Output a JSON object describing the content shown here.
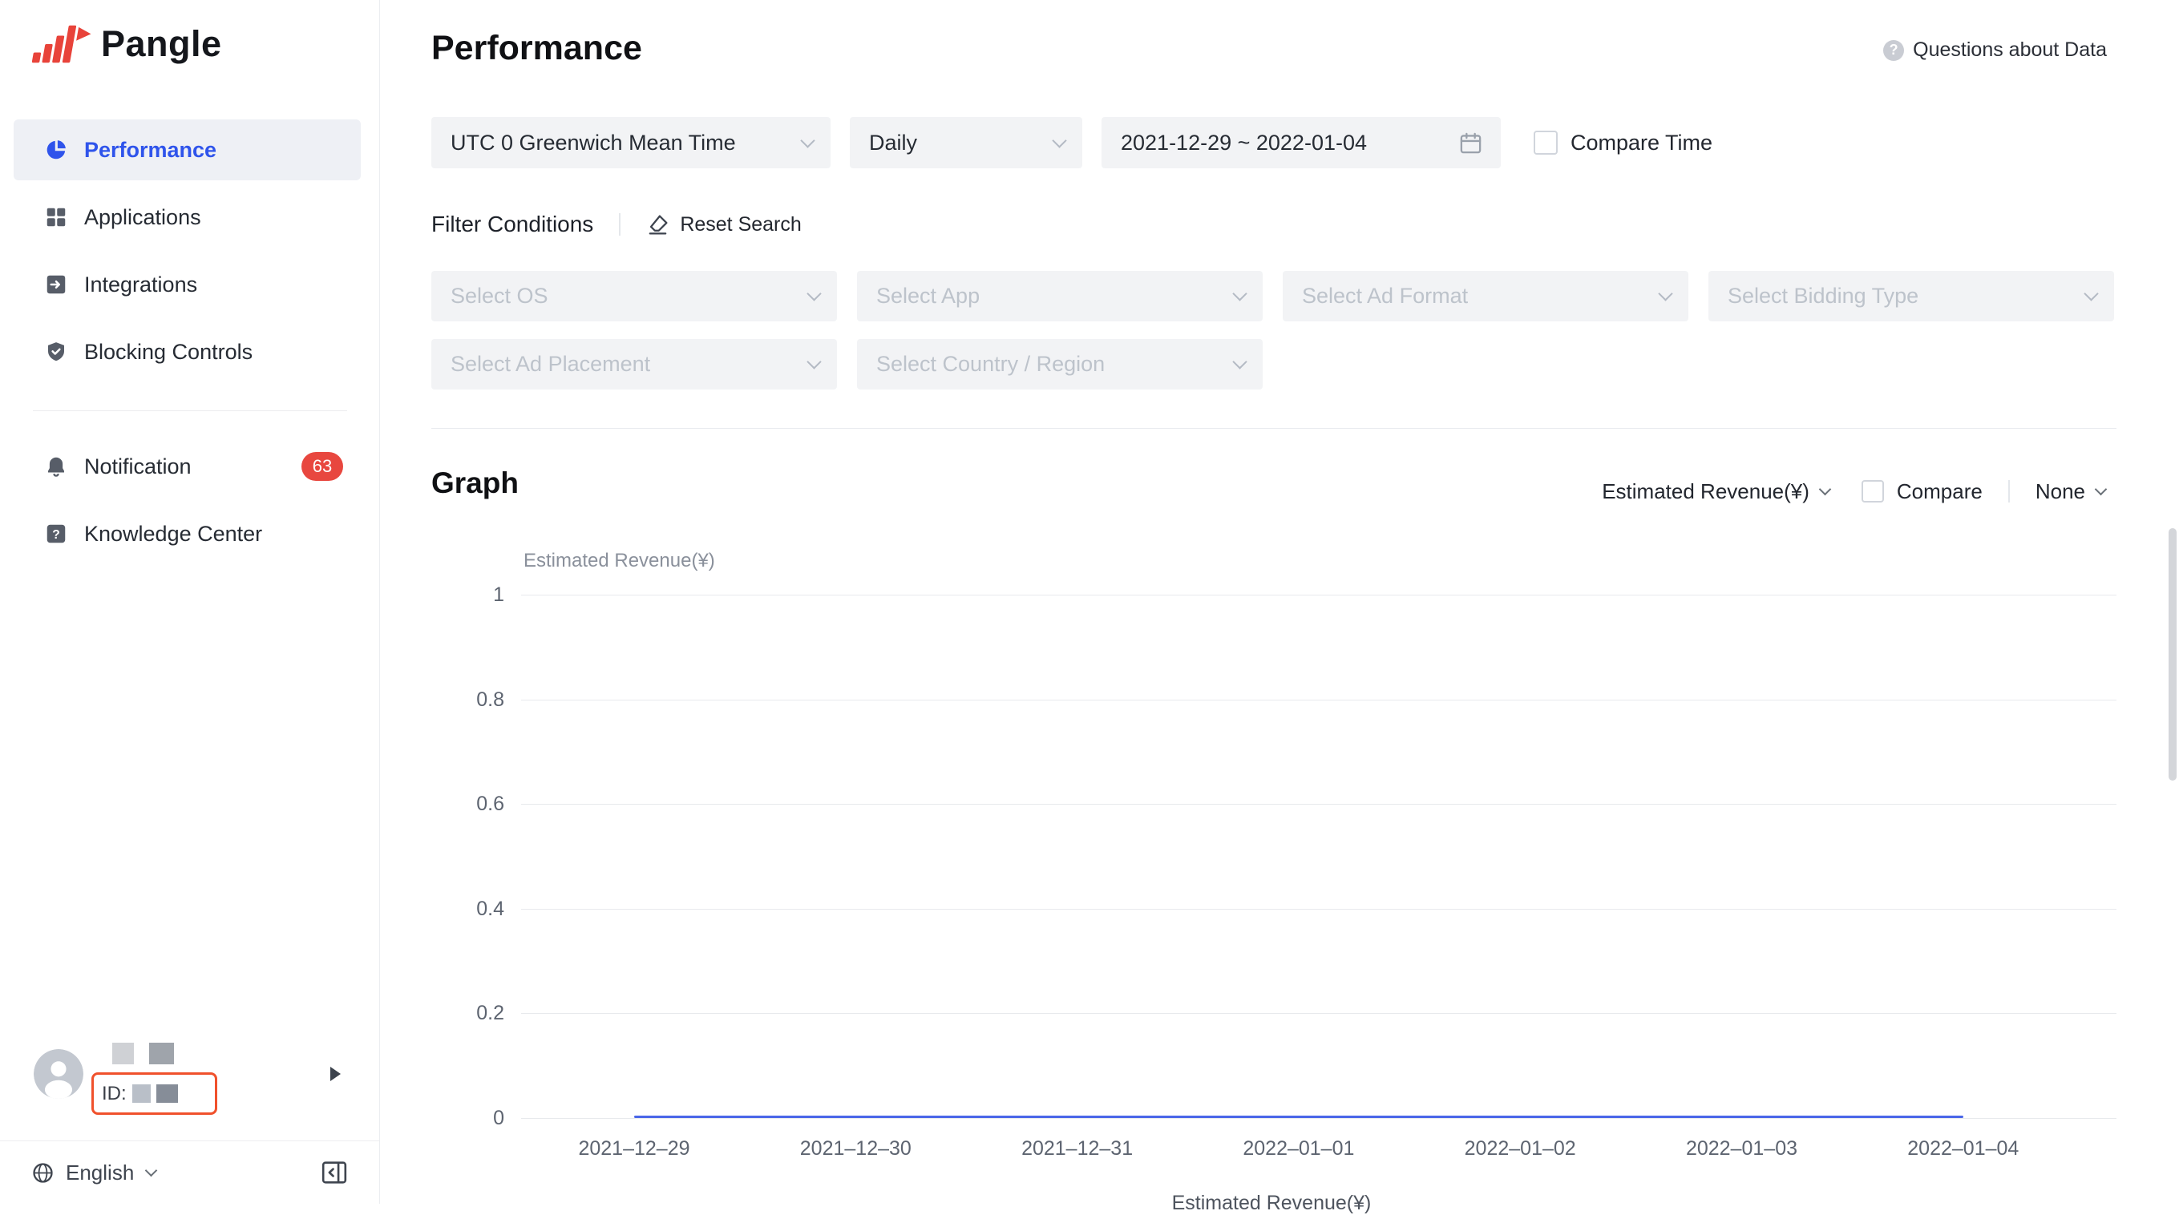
{
  "sidebar": {
    "logo_text": "Pangle",
    "items": [
      {
        "label": "Performance",
        "active": true
      },
      {
        "label": "Applications"
      },
      {
        "label": "Integrations"
      },
      {
        "label": "Blocking Controls"
      },
      {
        "label": "Notification",
        "badge": "63"
      },
      {
        "label": "Knowledge Center"
      }
    ],
    "user": {
      "id_label": "ID:"
    },
    "language": "English"
  },
  "header": {
    "title": "Performance",
    "help_label": "Questions about Data"
  },
  "filters": {
    "timezone": "UTC 0 Greenwich Mean Time",
    "granularity": "Daily",
    "date_range": "2021-12-29 ~ 2022-01-04",
    "compare_time_label": "Compare Time",
    "conditions_label": "Filter Conditions",
    "reset_label": "Reset Search",
    "selects": [
      "Select OS",
      "Select App",
      "Select Ad Format",
      "Select Bidding Type",
      "Select Ad Placement",
      "Select Country / Region"
    ]
  },
  "graph": {
    "title": "Graph",
    "metric_label": "Estimated Revenue(¥)",
    "compare_label": "Compare",
    "breakdown_label": "None"
  },
  "chart_data": {
    "type": "line",
    "x": [
      "2021–12–29",
      "2021–12–30",
      "2021–12–31",
      "2022–01–01",
      "2022–01–02",
      "2022–01–03",
      "2022–01–04"
    ],
    "series": [
      {
        "name": "Estimated Revenue(¥)",
        "values": [
          0,
          0,
          0,
          0,
          0,
          0,
          0
        ]
      }
    ],
    "xlabel": "",
    "ylabel": "Estimated Revenue(¥)",
    "ylim": [
      0,
      1
    ],
    "yticks": [
      1,
      0.8,
      0.6,
      0.4,
      0.2,
      0
    ],
    "grid": true,
    "legend_position": "bottom",
    "line_color": "#4a66e8"
  },
  "colors": {
    "accent_blue": "#2f54eb",
    "badge_red": "#e8473f",
    "highlight_box": "#f0512c",
    "logo_red": "#e8433a",
    "line_blue": "#4a66e8"
  }
}
